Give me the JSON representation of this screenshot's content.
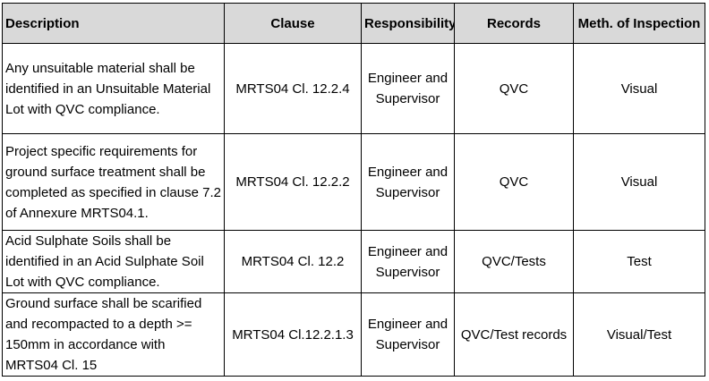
{
  "headers": {
    "description": "Description",
    "clause": "Clause",
    "responsibility": "Responsibility",
    "records": "Records",
    "inspection": "Meth. of Inspection"
  },
  "rows": [
    {
      "description": "Any unsuitable material shall be identified in an Unsuitable Material Lot with QVC compliance.",
      "clause": "MRTS04 Cl. 12.2.4",
      "responsibility": "Engineer and Supervisor",
      "records": "QVC",
      "inspection": "Visual"
    },
    {
      "description": "Project specific requirements for ground surface treatment shall be completed as specified in clause 7.2 of Annexure MRTS04.1.",
      "clause": "MRTS04 Cl. 12.2.2",
      "responsibility": "Engineer and Supervisor",
      "records": "QVC",
      "inspection": "Visual"
    },
    {
      "description": "Acid Sulphate Soils shall be identified in an Acid Sulphate Soil Lot with QVC compliance.",
      "clause": "MRTS04 Cl. 12.2",
      "responsibility": "Engineer and Supervisor",
      "records": "QVC/Tests",
      "inspection": "Test"
    },
    {
      "description": "Ground surface shall be scarified and recompacted to a depth >= 150mm in accordance with MRTS04 Cl. 15",
      "clause": "MRTS04 Cl.12.2.1.3",
      "responsibility": "Engineer and Supervisor",
      "records": "QVC/Test records",
      "inspection": "Visual/Test"
    }
  ]
}
